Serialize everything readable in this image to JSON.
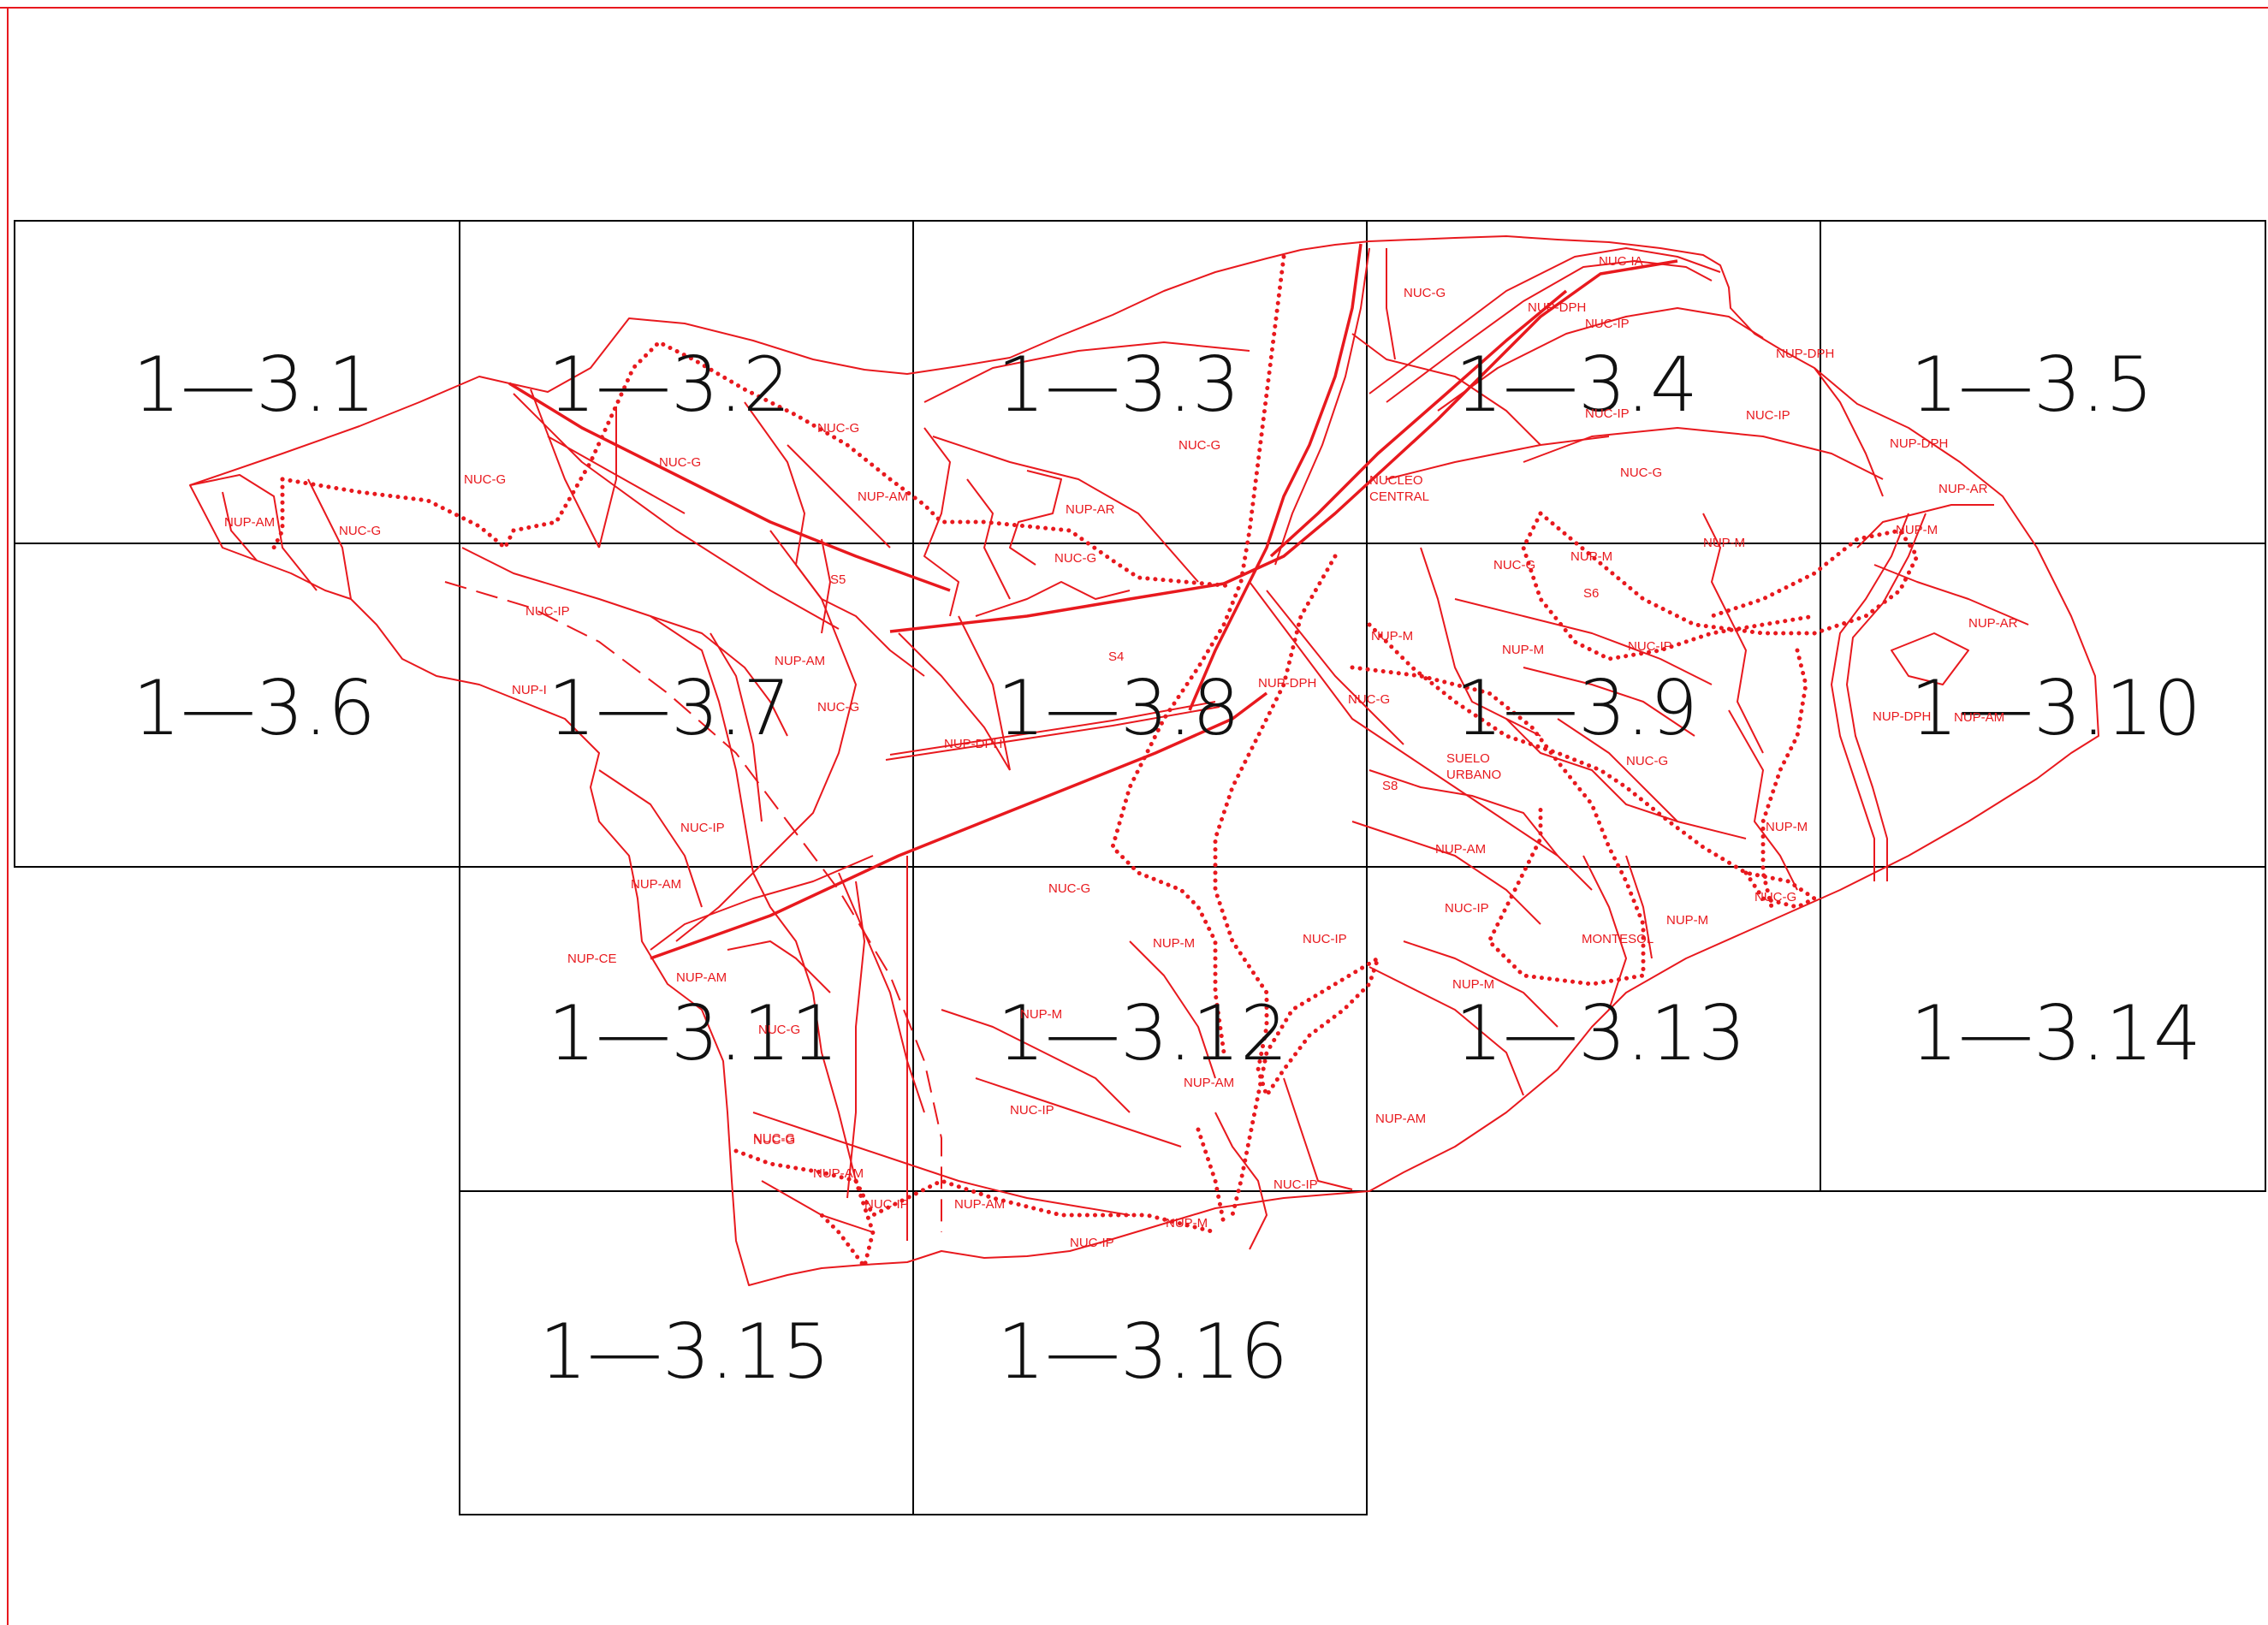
{
  "sheets": [
    {
      "id": "1-3.1",
      "label": "1—3.1"
    },
    {
      "id": "1-3.2",
      "label": "1—3.2"
    },
    {
      "id": "1-3.3",
      "label": "1—3.3"
    },
    {
      "id": "1-3.4",
      "label": "1—3.4"
    },
    {
      "id": "1-3.5",
      "label": "1—3.5"
    },
    {
      "id": "1-3.6",
      "label": "1—3.6"
    },
    {
      "id": "1-3.7",
      "label": "1—3.7"
    },
    {
      "id": "1-3.8",
      "label": "1—3.8"
    },
    {
      "id": "1-3.9",
      "label": "1—3.9"
    },
    {
      "id": "1-3.10",
      "label": "1—3.10"
    },
    {
      "id": "1-3.11",
      "label": "1—3.11"
    },
    {
      "id": "1-3.12",
      "label": "1—3.12"
    },
    {
      "id": "1-3.13",
      "label": "1—3.13"
    },
    {
      "id": "1-3.14",
      "label": "1—3.14"
    },
    {
      "id": "1-3.15",
      "label": "1—3.15"
    },
    {
      "id": "1-3.16",
      "label": "1—3.16"
    }
  ],
  "zones": [
    "NUP-AM",
    "NUC-G",
    "NUC-G",
    "NUC-G",
    "NUC-G",
    "NUP-AM",
    "NUP-AR",
    "NUC-G",
    "S5",
    "NUC-G",
    "NUC-IP",
    "NUP-AM",
    "NUP-I",
    "NUC-G",
    "S4",
    "NUP-DPH",
    "NUP-DPH",
    "NUC-G",
    "NUC-IA",
    "NUP-DPH",
    "NUC-IP",
    "NUC-IP",
    "NUP-DPH",
    "NUC-IP",
    "NUC-G",
    "NUCLEO",
    "CENTRAL",
    "NUC-G",
    "NUP-M",
    "NUP-M",
    "S6",
    "NUC-IP",
    "NUP-M",
    "NUP-M",
    "NUC-G",
    "SUELO",
    "URBANO",
    "S8",
    "NUC-G",
    "NUP-DPH",
    "NUP-AR",
    "NUP-M",
    "NUP-AR",
    "NUP-DPH",
    "NUP-AM",
    "NUP-M",
    "NUC-G",
    "NUC-IP",
    "NUP-AM",
    "NUP-CE",
    "NUP-AM",
    "NUC-G",
    "NUC-G",
    "NUC-G",
    "NUP-M",
    "NUC-IP",
    "NUP-M",
    "NUP-AM",
    "NUC-IP",
    "NUP-AM",
    "NUC-IP",
    "NUP-M",
    "MONTESOL",
    "NUP-M",
    "NUP-AM",
    "NUC-G",
    "NUP-AM",
    "NUC-IP",
    "NUP-AM",
    "NUC-IP",
    "NUP-M",
    "NUC-IP"
  ],
  "colors": {
    "plan_lines": "#e8191e",
    "grid_lines": "#000000",
    "background": "#ffffff"
  }
}
